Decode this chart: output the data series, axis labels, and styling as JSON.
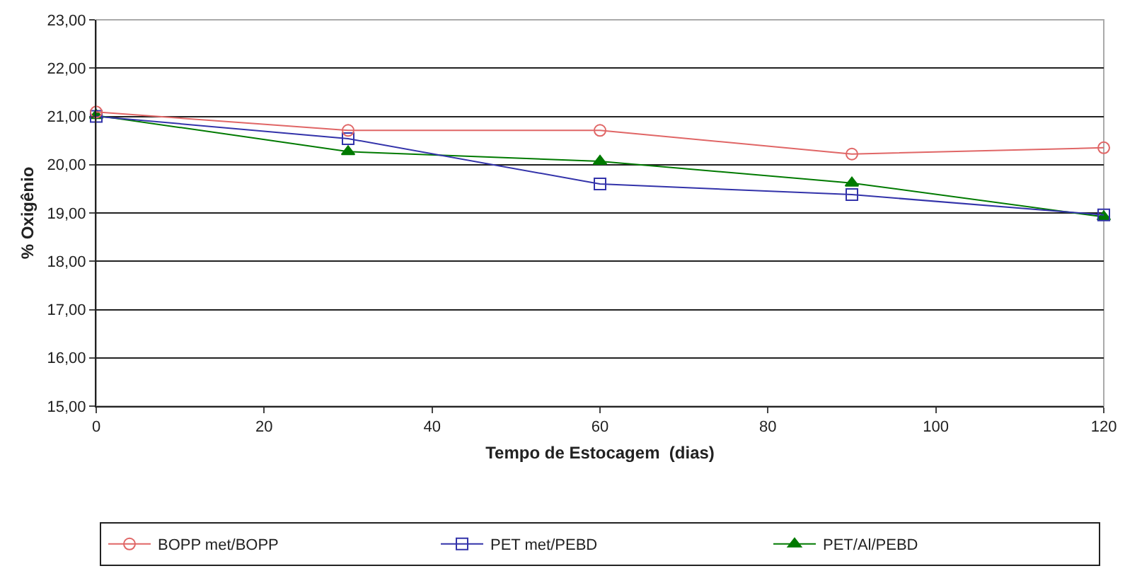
{
  "chart_data": {
    "type": "line",
    "xlabel": "Tempo de Estocagem  (dias)",
    "ylabel": "% Oxigênio",
    "x": [
      0,
      30,
      60,
      90,
      120
    ],
    "series": [
      {
        "name": "BOPP met/BOPP",
        "color": "#e06666",
        "marker": "circle",
        "values": [
          21.09,
          20.71,
          20.71,
          20.22,
          20.35
        ]
      },
      {
        "name": "PET met/PEBD",
        "color": "#3333aa",
        "marker": "square",
        "values": [
          21.0,
          20.54,
          19.6,
          19.38,
          18.96
        ]
      },
      {
        "name": "PET/Al/PEBD",
        "color": "#007a00",
        "marker": "triangle",
        "values": [
          21.02,
          20.27,
          20.07,
          19.62,
          18.92
        ]
      }
    ],
    "xlim": [
      0,
      120
    ],
    "xticks": [
      0,
      20,
      40,
      60,
      80,
      100,
      120
    ],
    "ylim": [
      15,
      23
    ],
    "yticks": [
      {
        "value": 15,
        "label": "15,00"
      },
      {
        "value": 16,
        "label": "16,00"
      },
      {
        "value": 17,
        "label": "17,00"
      },
      {
        "value": 18,
        "label": "18,00"
      },
      {
        "value": 19,
        "label": "19,00"
      },
      {
        "value": 20,
        "label": "20,00"
      },
      {
        "value": 21,
        "label": "21,00"
      },
      {
        "value": 22,
        "label": "22,00"
      },
      {
        "value": 23,
        "label": "23,00"
      }
    ],
    "grid": "y",
    "legend": "bottom"
  }
}
